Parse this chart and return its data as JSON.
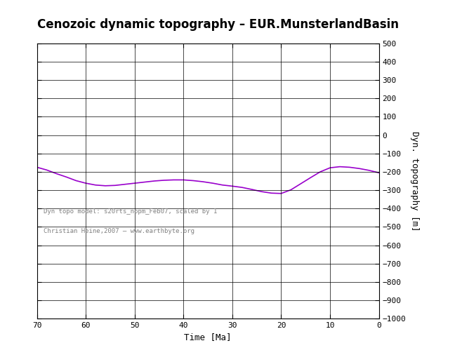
{
  "title": "Cenozoic dynamic topography – EUR.MunsterlandBasin",
  "xlabel": "Time [Ma]",
  "ylabel": "Dyn. topography [m]",
  "xlim": [
    70,
    0
  ],
  "ylim": [
    -1000,
    500
  ],
  "yticks": [
    500,
    400,
    300,
    200,
    100,
    0,
    -100,
    -200,
    -300,
    -400,
    -500,
    -600,
    -700,
    -800,
    -900,
    -1000
  ],
  "xticks": [
    70,
    60,
    50,
    40,
    30,
    20,
    10,
    0
  ],
  "line_color": "#9900CC",
  "annotation1": "Dyn topo model: s20rts_nopm_Feb07, scaled by 1",
  "annotation2": "Christian Heine,2007 – www.earthbyte.org",
  "time_points": [
    70,
    68,
    66,
    64,
    62,
    60,
    58,
    56,
    54,
    52,
    50,
    48,
    46,
    44,
    42,
    40,
    38,
    36,
    34,
    32,
    30,
    28,
    26,
    24,
    22,
    20,
    18,
    16,
    14,
    12,
    10,
    8,
    6,
    4,
    2,
    0
  ],
  "topo_values": [
    -175,
    -190,
    -210,
    -228,
    -248,
    -262,
    -272,
    -276,
    -274,
    -268,
    -262,
    -256,
    -250,
    -246,
    -244,
    -244,
    -248,
    -254,
    -262,
    -272,
    -278,
    -285,
    -296,
    -308,
    -316,
    -318,
    -298,
    -265,
    -232,
    -200,
    -178,
    -172,
    -175,
    -182,
    -192,
    -205
  ]
}
